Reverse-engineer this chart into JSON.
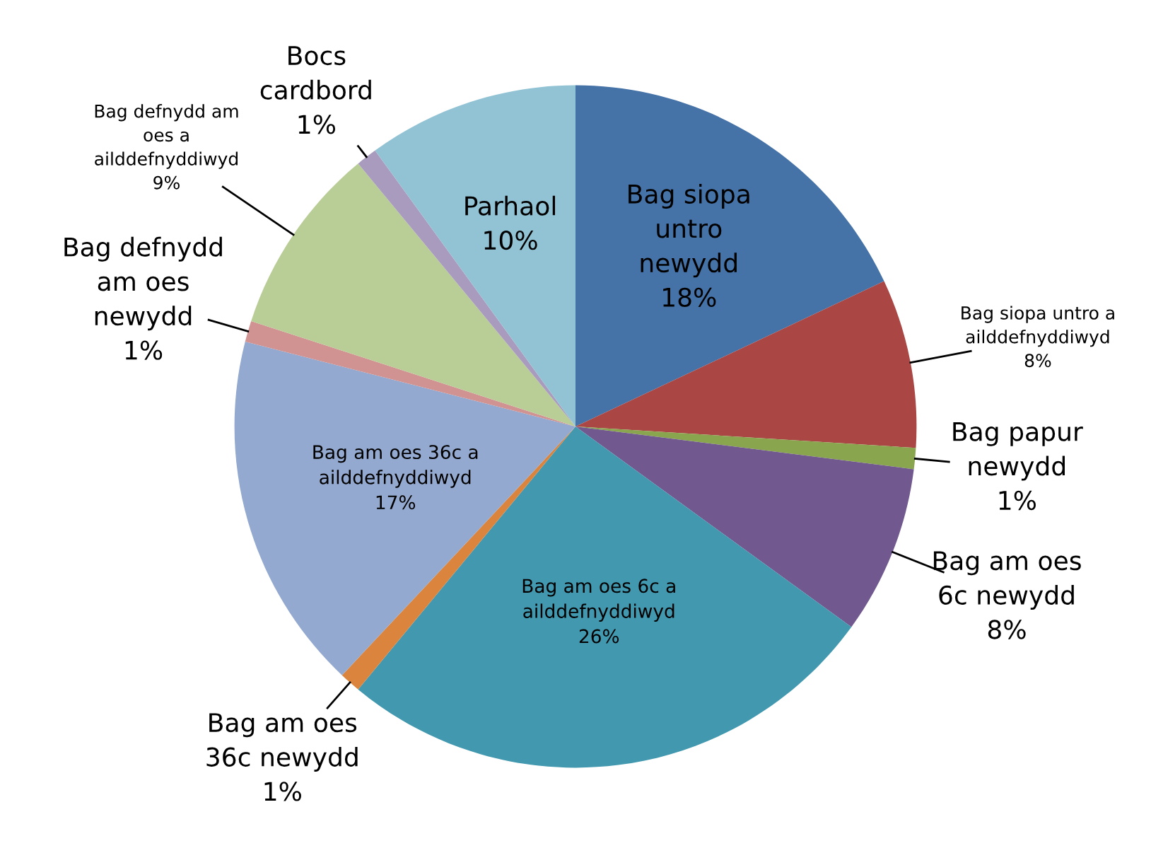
{
  "chart_data": {
    "type": "pie",
    "categories": [
      "Bag siopa\nuntro\nnewydd",
      "Bag siopa untro a\nailddefnyddiwyd",
      "Bag papur\nnewydd",
      "Bag am oes\n6c newydd",
      "Bag am oes 6c a\nailddefnyddiwyd",
      "Bag am oes\n36c newydd",
      "Bag am oes 36c a\nailddefnyddiwyd",
      "Bag defnydd\nam oes\nnewydd",
      "Bag defnydd am\noes a\nailddefnyddiwyd",
      "Bocs\ncardbord",
      "Parhaol"
    ],
    "values": [
      18,
      8,
      1,
      8,
      26,
      1,
      17,
      1,
      9,
      1,
      10
    ],
    "colors": [
      "#4572a7",
      "#aa4643",
      "#89a54e",
      "#71588f",
      "#4198af",
      "#db843d",
      "#93a9cf",
      "#d19392",
      "#b9cd96",
      "#a99bbd",
      "#92c3d4"
    ],
    "value_labels": [
      "18%",
      "8%",
      "1%",
      "8%",
      "26%",
      "1%",
      "17%",
      "1%",
      "9%",
      "1%",
      "10%"
    ]
  }
}
